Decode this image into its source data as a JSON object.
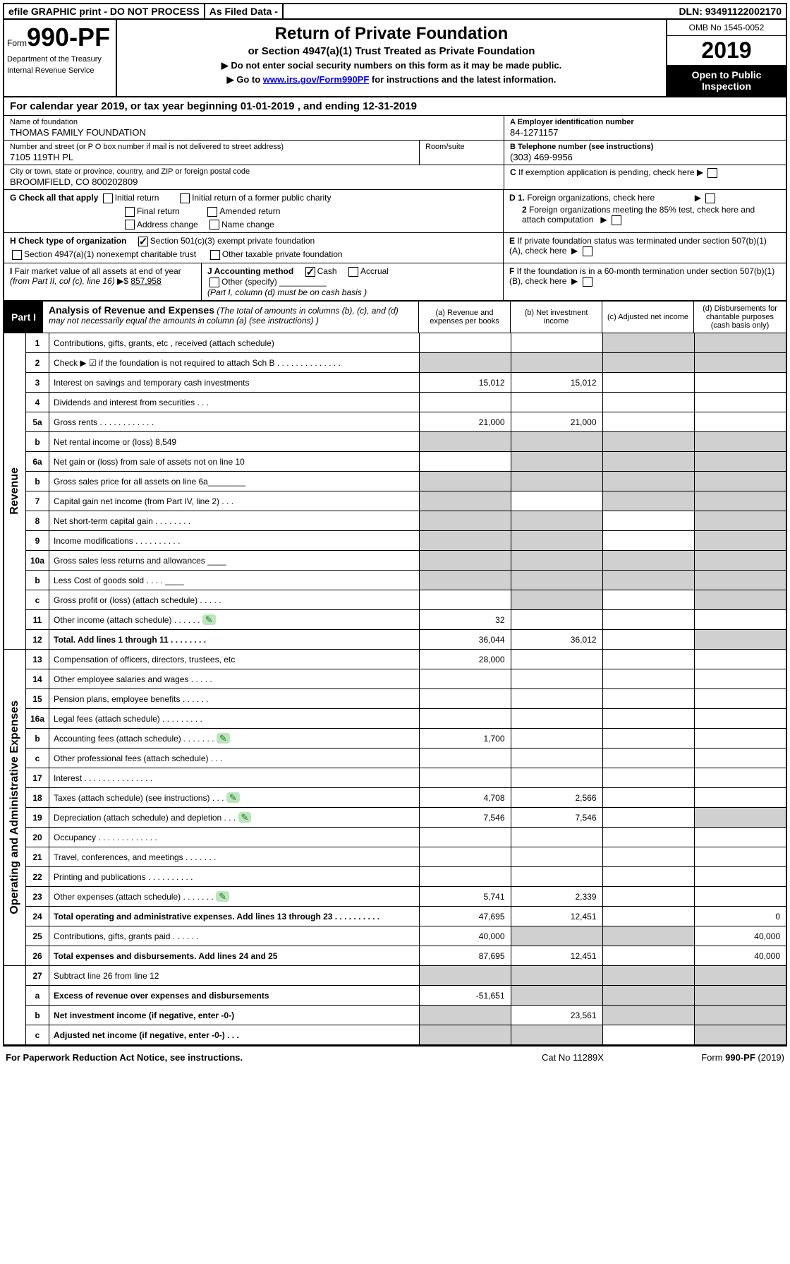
{
  "topbar": {
    "efile": "efile GRAPHIC print - DO NOT PROCESS",
    "asfiled": "As Filed Data -",
    "dln": "DLN: 93491122002170"
  },
  "header": {
    "form_prefix": "Form",
    "form_number": "990-PF",
    "dept1": "Department of the Treasury",
    "dept2": "Internal Revenue Service",
    "title": "Return of Private Foundation",
    "subtitle": "or Section 4947(a)(1) Trust Treated as Private Foundation",
    "note1": "▶ Do not enter social security numbers on this form as it may be made public.",
    "note2": "▶ Go to ",
    "link": "www.irs.gov/Form990PF",
    "note2b": " for instructions and the latest information.",
    "omb": "OMB No 1545-0052",
    "year": "2019",
    "inspect": "Open to Public Inspection"
  },
  "calyear": "For calendar year 2019, or tax year beginning 01-01-2019                    , and ending 12-31-2019",
  "info": {
    "name_lbl": "Name of foundation",
    "name": "THOMAS FAMILY FOUNDATION",
    "ein_lbl": "A Employer identification number",
    "ein": "84-1271157",
    "addr_lbl": "Number and street (or P O  box number if mail is not delivered to street address)",
    "room_lbl": "Room/suite",
    "addr": "7105 119TH PL",
    "phone_lbl": "B Telephone number (see instructions)",
    "phone": "(303) 469-9956",
    "city_lbl": "City or town, state or province, country, and ZIP or foreign postal code",
    "city": "BROOMFIELD, CO 800202809",
    "c_lbl": "C If exemption application is pending, check here"
  },
  "sections": {
    "g": "G Check all that apply",
    "g_opts": [
      "Initial return",
      "Initial return of a former public charity",
      "Final return",
      "Amended return",
      "Address change",
      "Name change"
    ],
    "d1": "D 1. Foreign organizations, check here",
    "d2": "2 Foreign organizations meeting the 85% test, check here and attach computation",
    "h": "H Check type of organization",
    "h1": "Section 501(c)(3) exempt private foundation",
    "h2": "Section 4947(a)(1) nonexempt charitable trust",
    "h3": "Other taxable private foundation",
    "e": "E  If private foundation status was terminated under section 507(b)(1)(A), check here",
    "i": "I Fair market value of all assets at end of year (from Part II, col  (c), line 16) ▶$ ",
    "i_val": "857,958",
    "j": "J Accounting method",
    "j_cash": "Cash",
    "j_accrual": "Accrual",
    "j_other": "Other (specify)",
    "j_note": "(Part I, column (d) must be on cash basis )",
    "f": "F  If the foundation is in a 60-month termination under section 507(b)(1)(B), check here"
  },
  "part1": {
    "label": "Part I",
    "title": "Analysis of Revenue and Expenses",
    "desc": " (The total of amounts in columns (b), (c), and (d) may not necessarily equal the amounts in column (a) (see instructions) )",
    "cols": [
      "(a)   Revenue and expenses per books",
      "(b) Net investment income",
      "(c) Adjusted net income",
      "(d) Disbursements for charitable purposes (cash basis only)"
    ]
  },
  "revenue_label": "Revenue",
  "expense_label": "Operating and Administrative Expenses",
  "rows": [
    {
      "ln": "1",
      "desc": "Contributions, gifts, grants, etc , received (attach schedule)",
      "a": "",
      "b": "",
      "c": "",
      "d": "",
      "grey_cd": true
    },
    {
      "ln": "2",
      "desc": "Check ▶ ☑ if the foundation is not required to attach Sch B     . . . . . . . . . . . . . .",
      "a": "",
      "b": "",
      "c": "",
      "d": "",
      "grey_all": true
    },
    {
      "ln": "3",
      "desc": "Interest on savings and temporary cash investments",
      "a": "15,012",
      "b": "15,012"
    },
    {
      "ln": "4",
      "desc": "Dividends and interest from securities    . . .",
      "a": "",
      "b": ""
    },
    {
      "ln": "5a",
      "desc": "Gross rents    . . . . . . . . . . . .",
      "a": "21,000",
      "b": "21,000"
    },
    {
      "ln": "b",
      "desc": "Net rental income or (loss)                            8,549",
      "grey_all": true
    },
    {
      "ln": "6a",
      "desc": "Net gain or (loss) from sale of assets not on line 10",
      "grey_bcd": true
    },
    {
      "ln": "b",
      "desc": "Gross sales price for all assets on line 6a________",
      "grey_all": true
    },
    {
      "ln": "7",
      "desc": "Capital gain net income (from Part IV, line 2)   . . .",
      "grey_a": true,
      "grey_cd": true
    },
    {
      "ln": "8",
      "desc": "Net short-term capital gain   . . . . . . . .",
      "grey_ab": true,
      "grey_d": true
    },
    {
      "ln": "9",
      "desc": "Income modifications . . . . . . . . . .",
      "grey_ab": true,
      "grey_d": true
    },
    {
      "ln": "10a",
      "desc": "Gross sales less returns and allowances  ____",
      "grey_all": true
    },
    {
      "ln": "b",
      "desc": "Less  Cost of goods sold    . . . .  ____",
      "grey_all": true
    },
    {
      "ln": "c",
      "desc": "Gross profit or (loss) (attach schedule)    . . . . .",
      "grey_b": true,
      "grey_d": true
    },
    {
      "ln": "11",
      "desc": "Other income (attach schedule)    . . . . . .",
      "icon": true,
      "a": "32"
    },
    {
      "ln": "12",
      "desc": "Total. Add lines 1 through 11   . . . . . . . .",
      "bold": true,
      "a": "36,044",
      "b": "36,012",
      "grey_d": true
    }
  ],
  "exp_rows": [
    {
      "ln": "13",
      "desc": "Compensation of officers, directors, trustees, etc",
      "a": "28,000"
    },
    {
      "ln": "14",
      "desc": "Other employee salaries and wages    . . . . .",
      "a": ""
    },
    {
      "ln": "15",
      "desc": "Pension plans, employee benefits   . . . . . .",
      "a": ""
    },
    {
      "ln": "16a",
      "desc": "Legal fees (attach schedule) . . . . . . . . .",
      "a": ""
    },
    {
      "ln": "b",
      "desc": "Accounting fees (attach schedule) . . . . . . .",
      "icon": true,
      "a": "1,700"
    },
    {
      "ln": "c",
      "desc": "Other professional fees (attach schedule)    . . .",
      "a": ""
    },
    {
      "ln": "17",
      "desc": "Interest  . . . . . . . . . . . . . . .",
      "a": ""
    },
    {
      "ln": "18",
      "desc": "Taxes (attach schedule) (see instructions)     . . .",
      "icon": true,
      "a": "4,708",
      "b": "2,566"
    },
    {
      "ln": "19",
      "desc": "Depreciation (attach schedule) and depletion    . . .",
      "icon": true,
      "a": "7,546",
      "b": "7,546",
      "grey_d": true
    },
    {
      "ln": "20",
      "desc": "Occupancy   . . . . . . . . . . . . .",
      "a": ""
    },
    {
      "ln": "21",
      "desc": "Travel, conferences, and meetings . . . . . . .",
      "a": ""
    },
    {
      "ln": "22",
      "desc": "Printing and publications . . . . . . . . . .",
      "a": ""
    },
    {
      "ln": "23",
      "desc": "Other expenses (attach schedule) . . . . . . .",
      "icon": true,
      "a": "5,741",
      "b": "2,339"
    },
    {
      "ln": "24",
      "desc": "Total operating and administrative expenses. Add lines 13 through 23   . . . . . . . . . .",
      "bold": true,
      "a": "47,695",
      "b": "12,451",
      "d": "0"
    },
    {
      "ln": "25",
      "desc": "Contributions, gifts, grants paid    . . . . . .",
      "a": "40,000",
      "grey_bc": true,
      "d": "40,000"
    },
    {
      "ln": "26",
      "desc": "Total expenses and disbursements. Add lines 24 and 25",
      "bold": true,
      "a": "87,695",
      "b": "12,451",
      "d": "40,000"
    }
  ],
  "final_rows": [
    {
      "ln": "27",
      "desc": "Subtract line 26 from line 12",
      "grey_all": true
    },
    {
      "ln": "a",
      "desc": "Excess of revenue over expenses and disbursements",
      "bold": true,
      "a": "-51,651",
      "grey_bcd": true
    },
    {
      "ln": "b",
      "desc": "Net investment income (if negative, enter -0-)",
      "bold": true,
      "b": "23,561",
      "grey_a": true,
      "grey_cd": true
    },
    {
      "ln": "c",
      "desc": "Adjusted net income (if negative, enter -0-)   . . .",
      "bold": true,
      "grey_ab": true,
      "grey_d": true
    }
  ],
  "footer": {
    "left": "For Paperwork Reduction Act Notice, see instructions.",
    "center": "Cat No  11289X",
    "right": "Form 990-PF (2019)"
  },
  "colors": {
    "black": "#000000",
    "grey": "#d0d0d0",
    "link": "#0000ff",
    "icon_bg": "#bde5bd",
    "icon_fg": "#1a7a1a"
  }
}
